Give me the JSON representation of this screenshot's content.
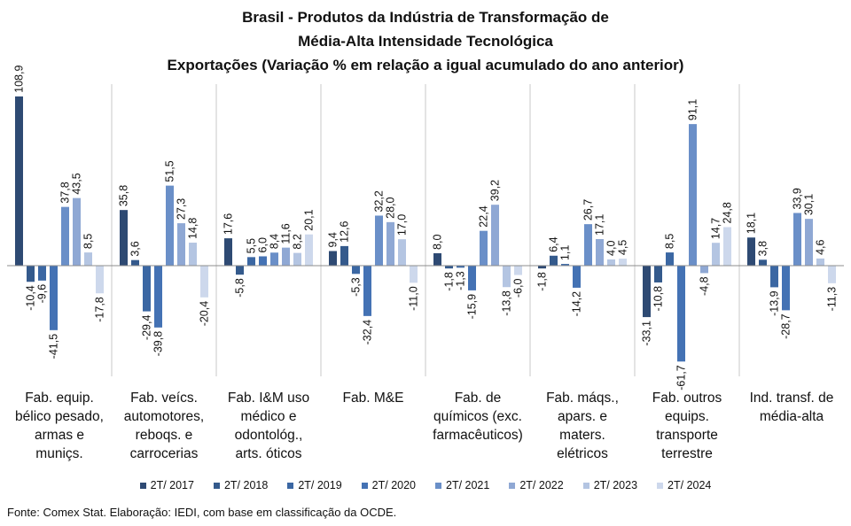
{
  "title_lines": [
    "Brasil - Produtos da Indústria de Transformação de",
    "Média-Alta Intensidade Tecnológica",
    "Exportações (Variação % em relação a igual acumulado do ano anterior)"
  ],
  "source": "Fonte: Comex Stat. Elaboração: IEDI, com base em classificação da OCDE.",
  "chart_data": {
    "type": "bar",
    "title": "Brasil - Produtos da Indústria de Transformação de Média-Alta Intensidade Tecnológica — Exportações (Variação % em relação a igual acumulado do ano anterior)",
    "categories": [
      [
        "Fab. equip.",
        "bélico pesado,",
        "armas e",
        "muniçs."
      ],
      [
        "Fab. veícs.",
        "automotores,",
        "reboqs. e",
        "carrocerias"
      ],
      [
        "Fab. I&M uso",
        "médico e",
        "odontológ.,",
        "arts. óticos"
      ],
      [
        "Fab. M&E"
      ],
      [
        "Fab. de",
        "químicos (exc.",
        "farmacêuticos)"
      ],
      [
        "Fab. máqs.,",
        "apars. e",
        "maters.",
        "elétricos"
      ],
      [
        "Fab. outros",
        "equips.",
        "transporte",
        "terrestre"
      ],
      [
        "Ind. transf. de",
        "média-alta"
      ]
    ],
    "series": [
      {
        "name": "2T/ 2017",
        "color": "#2e4a73",
        "values": [
          108.9,
          35.8,
          17.6,
          9.4,
          8.0,
          -1.8,
          -33.1,
          18.1
        ]
      },
      {
        "name": "2T/ 2018",
        "color": "#345a8c",
        "values": [
          -10.4,
          3.6,
          -5.8,
          12.6,
          -1.8,
          6.4,
          -10.8,
          3.8
        ]
      },
      {
        "name": "2T/ 2019",
        "color": "#3b67a3",
        "values": [
          -9.6,
          -29.4,
          5.5,
          -5.3,
          -1.3,
          1.1,
          8.5,
          -13.9
        ]
      },
      {
        "name": "2T/ 2020",
        "color": "#4472b4",
        "values": [
          -41.5,
          -39.8,
          6.0,
          -32.4,
          -15.9,
          -14.2,
          -61.7,
          -28.7
        ]
      },
      {
        "name": "2T/ 2021",
        "color": "#6a8fc8",
        "values": [
          37.8,
          51.5,
          8.4,
          32.2,
          22.4,
          26.7,
          91.1,
          33.9
        ]
      },
      {
        "name": "2T/ 2022",
        "color": "#8fa8d4",
        "values": [
          43.5,
          27.3,
          11.6,
          28.0,
          39.2,
          17.1,
          -4.8,
          30.1
        ]
      },
      {
        "name": "2T/ 2023",
        "color": "#b4c5e2",
        "values": [
          8.5,
          14.8,
          8.2,
          17.0,
          -13.8,
          4.0,
          14.7,
          4.6
        ]
      },
      {
        "name": "2T/ 2024",
        "color": "#cdd8ec",
        "values": [
          -17.8,
          -20.4,
          20.1,
          -11.0,
          -6.0,
          4.5,
          24.8,
          -11.3
        ]
      }
    ],
    "ylim": [
      -63,
      110
    ],
    "grid": false,
    "legend_position": "bottom"
  }
}
